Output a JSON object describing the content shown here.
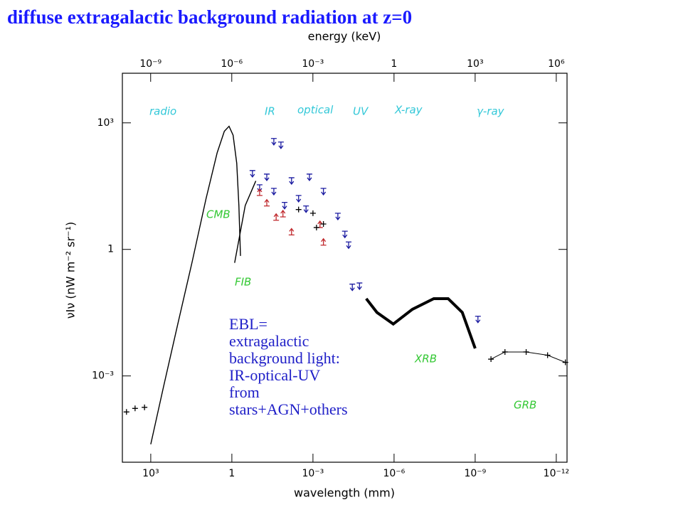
{
  "chart_data": {
    "type": "scatter",
    "title": "diffuse extragalactic background radiation at z=0",
    "xlabel": "wavelength (mm)",
    "x2label": "energy (keV)",
    "ylabel": "νIν (nW m⁻² sr⁻¹)",
    "xscale": "log",
    "yscale": "log",
    "xlim": [
      11220,
      4e-13
    ],
    "x2lim": [
      9e-11,
      2500000
    ],
    "ylim": [
      9e-06,
      15000
    ],
    "xticks": [
      {
        "value": 1000,
        "label": "10³"
      },
      1,
      {
        "value": 0.001,
        "label": "10⁻³"
      },
      {
        "value": 1e-06,
        "label": "10⁻⁶"
      },
      {
        "value": 1e-09,
        "label": "10⁻⁹"
      },
      {
        "value": 1e-12,
        "label": "10⁻¹²"
      }
    ],
    "x2ticks": [
      {
        "value": 1e-09,
        "label": "10⁻⁹"
      },
      {
        "value": 1e-06,
        "label": "10⁻⁶"
      },
      {
        "value": 0.001,
        "label": "10⁻³"
      },
      1,
      {
        "value": 1000,
        "label": "10³"
      },
      {
        "value": 1000000,
        "label": "10⁶"
      }
    ],
    "yticks": [
      {
        "value": 1000,
        "label": "10³"
      },
      1,
      {
        "value": 0.001,
        "label": "10⁻³"
      }
    ],
    "bands": [
      "radio",
      "IR",
      "optical",
      "UV",
      "X-ray",
      "γ-ray"
    ],
    "note": [
      "EBL=",
      "extragalactic",
      "background light:",
      "IR-optical-UV",
      "from",
      "stars+AGN+others"
    ],
    "series": [
      {
        "name": "CMB",
        "color": "#000000",
        "marker": "line",
        "x": [
          1000,
          340,
          100,
          30,
          9,
          3.5,
          1.9,
          1.27,
          0.9,
          0.66,
          0.55,
          0.48
        ],
        "values": [
          2.4e-05,
          0.00054,
          0.017,
          0.48,
          16,
          195,
          630,
          830,
          510,
          110,
          11,
          0.7
        ]
      },
      {
        "color": "#000000",
        "marker": "cross",
        "x": [
          7900,
          3800,
          1700
        ],
        "values": [
          0.00014,
          0.00017,
          0.00018
        ]
      },
      {
        "name": "FIB",
        "color": "#000000",
        "marker": "line",
        "x": [
          0.79,
          0.32,
          0.13
        ],
        "values": [
          0.48,
          11,
          42
        ]
      },
      {
        "color": "#1a1aa0",
        "marker": "arrow-down",
        "x": [
          0.028,
          0.0153,
          0.173,
          0.094,
          0.051,
          0.028,
          0.0062,
          0.0034,
          0.00135,
          0.00041,
          0.0112,
          0.0018,
          0.00012,
          6.6e-05,
          4.8e-05,
          3.5e-05,
          1.9e-05,
          7.9e-10
        ],
        "values": [
          426,
          351,
          74,
          34,
          61,
          28,
          50,
          19,
          61,
          28,
          13,
          10.7,
          7.2,
          2.7,
          1.5,
          0.15,
          0.16,
          0.026
        ]
      },
      {
        "color": "#c0282c",
        "marker": "arrow-up",
        "x": [
          0.094,
          0.051,
          0.023,
          0.0129,
          0.0062,
          0.00055,
          0.00041
        ],
        "values": [
          19,
          10.7,
          4.9,
          5.9,
          2.2,
          3.3,
          1.26
        ]
      },
      {
        "color": "#000000",
        "marker": "cross",
        "x": [
          0.0034,
          0.001,
          0.00074,
          0.00041
        ],
        "values": [
          8.8,
          7.2,
          3.3,
          4.0
        ]
      },
      {
        "name": "XRB",
        "color": "#000000",
        "marker": "thick-line",
        "x": [
          1.07e-05,
          4.3e-06,
          1.07e-06,
          2.1e-07,
          3.4e-08,
          1e-08,
          3e-09,
          1e-09
        ],
        "values": [
          0.068,
          0.032,
          0.017,
          0.038,
          0.068,
          0.068,
          0.032,
          0.0045
        ]
      },
      {
        "name": "GRB",
        "color": "#000000",
        "marker": "line-cross",
        "x": [
          2.6e-10,
          7.9e-11,
          1.3e-11,
          2.1e-12,
          4.6e-13
        ],
        "values": [
          0.0025,
          0.0037,
          0.0037,
          0.0031,
          0.0021
        ]
      }
    ]
  }
}
